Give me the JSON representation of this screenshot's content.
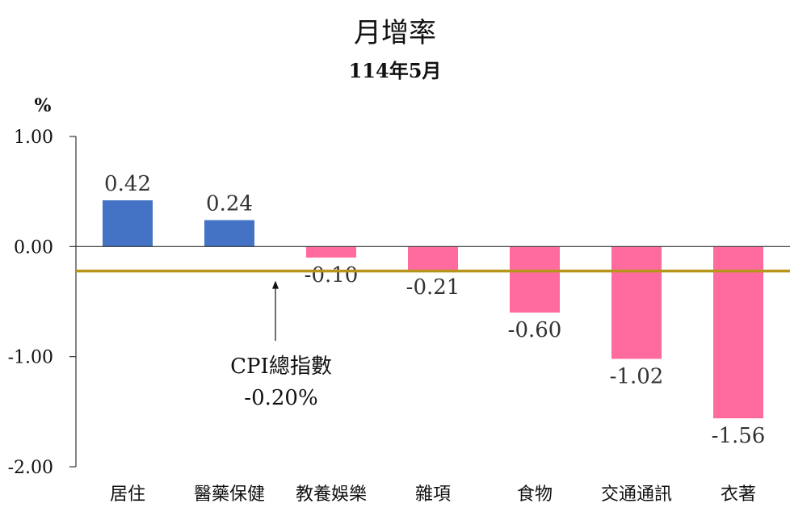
{
  "chart_data": {
    "type": "bar",
    "title": "月增率",
    "subtitle": "114年5月",
    "ylabel": "%",
    "ylim": [
      -2,
      1
    ],
    "yticks": [
      "1.00",
      "0.00",
      "-1.00",
      "-2.00"
    ],
    "categories": [
      "居住",
      "醫藥保健",
      "教養娛樂",
      "雜項",
      "食物",
      "交通通訊",
      "衣著"
    ],
    "values": [
      0.42,
      0.24,
      -0.1,
      -0.21,
      -0.6,
      -1.02,
      -1.56
    ],
    "data_labels": [
      "0.42",
      "0.24",
      "-0.10",
      "-0.21",
      "-0.60",
      "-1.02",
      "-1.56"
    ],
    "reference_line": {
      "value": -0.2,
      "label": "CPI總指數",
      "value_label": "-0.20%",
      "color": "#b8941a"
    },
    "colors": {
      "positive": "#4472c4",
      "negative": "#ff6b9e"
    }
  }
}
